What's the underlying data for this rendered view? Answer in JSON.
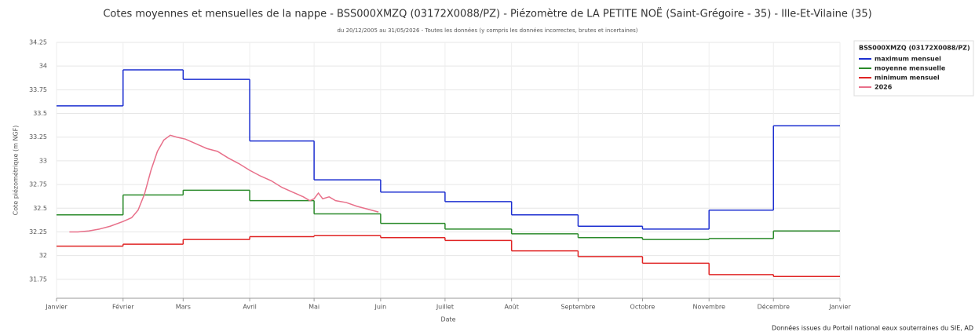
{
  "chart_data": {
    "type": "line",
    "title": "Cotes moyennes et mensuelles de la nappe - BSS000XMZQ (03172X0088/PZ) - Piézomètre de LA PETITE NOË (Saint-Grégoire - 35) - Ille-Et-Vilaine (35)",
    "subtitle": "du 20/12/2005 au 31/05/2026 - Toutes les données (y compris les données incorrectes, brutes et incertaines)",
    "x_label": "Date",
    "y_label": "Cote piézométrique (m NGF)",
    "legend_title": "BSS000XMZQ (03172X0088/PZ)",
    "legend_position": "right",
    "footer": "Données issues du Portail national eaux souterraines du SIE, AD",
    "grid": true,
    "xlim": [
      0,
      365
    ],
    "xticks": [
      {
        "value": 0,
        "label": "Janvier"
      },
      {
        "value": 31,
        "label": "Février"
      },
      {
        "value": 59,
        "label": "Mars"
      },
      {
        "value": 90,
        "label": "Avril"
      },
      {
        "value": 120,
        "label": "Mai"
      },
      {
        "value": 151,
        "label": "Juin"
      },
      {
        "value": 181,
        "label": "Juillet"
      },
      {
        "value": 212,
        "label": "Août"
      },
      {
        "value": 243,
        "label": "Septembre"
      },
      {
        "value": 273,
        "label": "Octobre"
      },
      {
        "value": 304,
        "label": "Novembre"
      },
      {
        "value": 334,
        "label": "Décembre"
      },
      {
        "value": 365,
        "label": "Janvier"
      }
    ],
    "ylim": [
      31.55,
      34.25
    ],
    "yticks": [
      31.75,
      32,
      32.25,
      32.5,
      32.75,
      33,
      33.25,
      33.5,
      33.75,
      34,
      34.25
    ],
    "step_series": [
      {
        "name": "maximum mensuel",
        "color": "#1c2fd0",
        "values": [
          33.58,
          33.96,
          33.86,
          33.21,
          32.8,
          32.67,
          32.57,
          32.43,
          32.31,
          32.28,
          32.48,
          33.37
        ]
      },
      {
        "name": "moyenne mensuelle",
        "color": "#2a8a2a",
        "values": [
          32.43,
          32.64,
          32.69,
          32.58,
          32.44,
          32.34,
          32.28,
          32.23,
          32.19,
          32.17,
          32.18,
          32.26
        ]
      },
      {
        "name": "minimum mensuel",
        "color": "#e02424",
        "values": [
          32.1,
          32.12,
          32.17,
          32.2,
          32.21,
          32.19,
          32.16,
          32.05,
          31.99,
          31.92,
          31.8,
          31.78
        ]
      }
    ],
    "series": [
      {
        "name": "2026",
        "color": "#e8708a",
        "x": [
          6,
          10,
          15,
          20,
          25,
          31,
          35,
          38,
          41,
          44,
          47,
          50,
          53,
          56,
          60,
          65,
          70,
          75,
          80,
          85,
          90,
          95,
          100,
          105,
          110,
          115,
          118,
          120,
          122,
          124,
          127,
          130,
          135,
          140,
          145,
          150
        ],
        "values": [
          32.25,
          32.25,
          32.26,
          32.28,
          32.31,
          32.36,
          32.4,
          32.48,
          32.65,
          32.9,
          33.1,
          33.22,
          33.27,
          33.25,
          33.23,
          33.18,
          33.13,
          33.1,
          33.03,
          32.97,
          32.9,
          32.84,
          32.79,
          32.72,
          32.67,
          32.62,
          32.58,
          32.6,
          32.66,
          32.6,
          32.62,
          32.58,
          32.56,
          32.52,
          32.49,
          32.46
        ]
      }
    ]
  }
}
